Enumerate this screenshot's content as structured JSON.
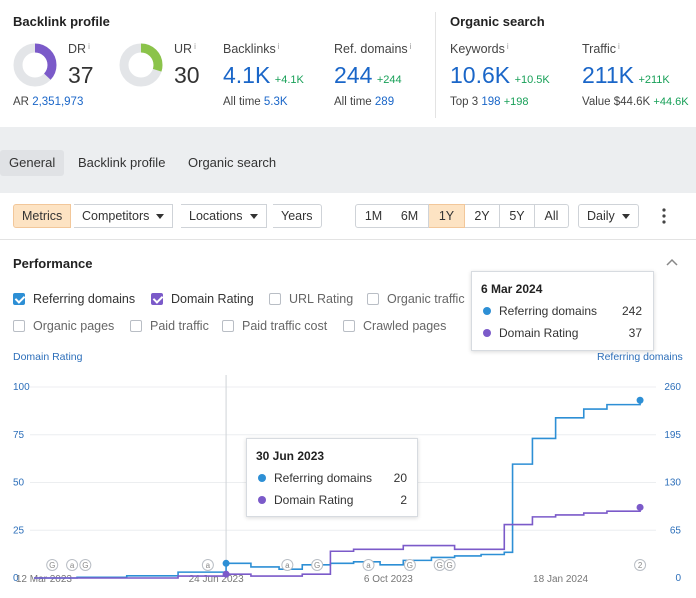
{
  "backlink_profile": {
    "title": "Backlink profile",
    "dr": {
      "label": "DR",
      "info": "i",
      "value": "37",
      "fraction": 0.37,
      "color": "#7b5ac9"
    },
    "ur": {
      "label": "UR",
      "info": "i",
      "value": "30",
      "fraction": 0.3,
      "color": "#8bc34a"
    },
    "ar": {
      "label": "AR",
      "value": "2,351,973"
    },
    "backlinks": {
      "label": "Backlinks",
      "info": "i",
      "value": "4.1K",
      "delta": "+4.1K",
      "sub_label": "All time",
      "sub_value": "5.3K"
    },
    "ref_domains": {
      "label": "Ref. domains",
      "info": "i",
      "value": "244",
      "delta": "+244",
      "sub_label": "All time",
      "sub_value": "289"
    }
  },
  "organic_search": {
    "title": "Organic search",
    "keywords": {
      "label": "Keywords",
      "info": "i",
      "value": "10.6K",
      "delta": "+10.5K",
      "sub_label": "Top 3",
      "sub_value": "198",
      "sub_delta": "+198"
    },
    "traffic": {
      "label": "Traffic",
      "info": "i",
      "value": "211K",
      "delta": "+211K",
      "sub_label": "Value",
      "sub_value": "$44.6K",
      "sub_delta": "+44.6K"
    }
  },
  "tabs": [
    "General",
    "Backlink profile",
    "Organic search"
  ],
  "toolbar": {
    "metrics": "Metrics",
    "competitors": "Competitors",
    "locations": "Locations",
    "years": "Years",
    "ranges": [
      "1M",
      "6M",
      "1Y",
      "2Y",
      "5Y",
      "All"
    ],
    "active_range": "1Y",
    "interval": "Daily"
  },
  "performance": {
    "title": "Performance",
    "checkboxes": [
      {
        "label": "Referring domains",
        "checked": true,
        "color": "#2d8fd5"
      },
      {
        "label": "Domain Rating",
        "checked": true,
        "color": "#7b5ac9"
      },
      {
        "label": "URL Rating",
        "checked": false
      },
      {
        "label": "Organic traffic",
        "checked": false
      },
      {
        "label": "Organic pages",
        "checked": false
      },
      {
        "label": "Paid traffic",
        "checked": false
      },
      {
        "label": "Paid traffic cost",
        "checked": false
      },
      {
        "label": "Crawled pages",
        "checked": false
      }
    ]
  },
  "tooltip_top": {
    "date": "6 Mar 2024",
    "rows": [
      {
        "label": "Referring domains",
        "value": "242",
        "color": "#2d8fd5"
      },
      {
        "label": "Domain Rating",
        "value": "37",
        "color": "#7b5ac9"
      }
    ]
  },
  "tooltip_mid": {
    "date": "30 Jun 2023",
    "rows": [
      {
        "label": "Referring domains",
        "value": "20",
        "color": "#2d8fd5"
      },
      {
        "label": "Domain Rating",
        "value": "2",
        "color": "#7b5ac9"
      }
    ]
  },
  "chart_data": {
    "type": "line",
    "ylabel_left": "Domain Rating",
    "ylabel_right": "Referring domains",
    "ylim_left": [
      0,
      100
    ],
    "ylim_right": [
      0,
      260
    ],
    "yticks_left": [
      "100",
      "75",
      "50",
      "25",
      "0"
    ],
    "yticks_right": [
      "260",
      "195",
      "130",
      "65",
      "0"
    ],
    "xticks": [
      "12 Mar 2023",
      "24 Jun 2023",
      "6 Oct 2023",
      "18 Jan 2024"
    ],
    "markers": [
      "G",
      "a",
      "G",
      "a",
      "a",
      "G",
      "a",
      "G",
      "G",
      "G",
      "2"
    ],
    "series": [
      {
        "name": "Referring domains",
        "color": "#2d8fd5",
        "axis": "right",
        "x": [
          "2023-03-06",
          "2023-04-01",
          "2023-05-01",
          "2023-06-01",
          "2023-06-30",
          "2023-07-15",
          "2023-08-01",
          "2023-08-15",
          "2023-09-01",
          "2023-09-15",
          "2023-10-01",
          "2023-10-15",
          "2023-11-01",
          "2023-11-15",
          "2023-12-01",
          "2023-12-15",
          "2023-12-20",
          "2024-01-01",
          "2024-01-15",
          "2024-02-01",
          "2024-02-15",
          "2024-03-06"
        ],
        "values": [
          0,
          1,
          3,
          8,
          20,
          15,
          12,
          18,
          20,
          22,
          18,
          24,
          28,
          30,
          32,
          35,
          155,
          190,
          218,
          230,
          236,
          242
        ]
      },
      {
        "name": "Domain Rating",
        "color": "#7b5ac9",
        "axis": "left",
        "x": [
          "2023-03-06",
          "2023-04-01",
          "2023-05-01",
          "2023-06-01",
          "2023-06-30",
          "2023-07-15",
          "2023-08-01",
          "2023-08-15",
          "2023-09-01",
          "2023-09-15",
          "2023-10-01",
          "2023-10-15",
          "2023-11-01",
          "2023-11-15",
          "2023-12-01",
          "2023-12-15",
          "2024-01-01",
          "2024-01-15",
          "2024-02-01",
          "2024-02-15",
          "2024-03-06"
        ],
        "values": [
          0,
          0,
          0,
          1,
          2,
          1,
          1,
          2,
          14,
          15,
          15,
          17,
          17,
          15,
          15,
          28,
          32,
          33,
          34,
          35,
          37
        ]
      }
    ]
  }
}
